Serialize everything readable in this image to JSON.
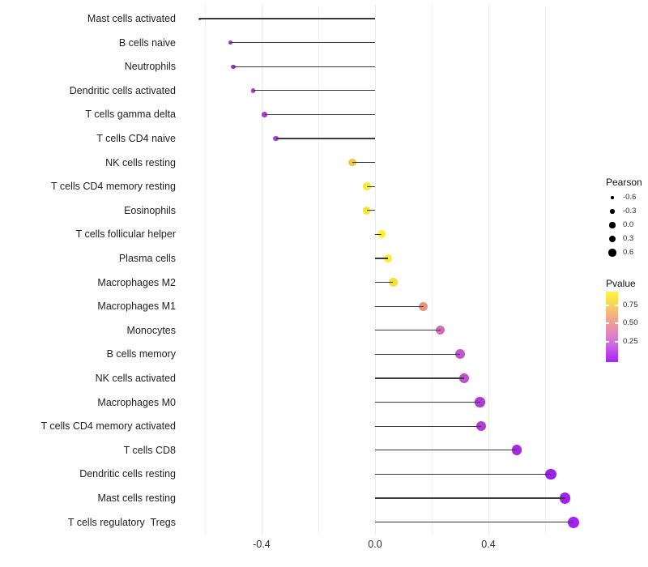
{
  "chart_data": {
    "type": "lollipop",
    "orientation": "horizontal",
    "title": "",
    "xlabel": "",
    "ylabel": "",
    "x_axis": {
      "tick_labels": [
        "-0.4",
        "0.0",
        "0.4"
      ],
      "tick_values": [
        -0.4,
        0.0,
        0.4
      ],
      "minor_gridline_values": [
        -0.6,
        -0.2,
        0.2,
        0.6
      ],
      "range": [
        -0.69,
        0.77
      ],
      "zero_baseline": 0.0
    },
    "rows": [
      {
        "label": "Mast cells activated",
        "pearson": -0.62,
        "dot_color": "#9E2BDA"
      },
      {
        "label": "B cells naive",
        "pearson": -0.51,
        "dot_color": "#A02EDC"
      },
      {
        "label": "Neutrophils",
        "pearson": -0.5,
        "dot_color": "#A02EDC"
      },
      {
        "label": "Dendritic cells activated",
        "pearson": -0.43,
        "dot_color": "#A637D8"
      },
      {
        "label": "T cells gamma delta",
        "pearson": -0.39,
        "dot_color": "#A83AD8"
      },
      {
        "label": "T cells CD4 naive",
        "pearson": -0.35,
        "dot_color": "#AC40D8"
      },
      {
        "label": "NK cells resting",
        "pearson": -0.08,
        "dot_color": "#EFC74E"
      },
      {
        "label": "T cells CD4 memory resting",
        "pearson": -0.028,
        "dot_color": "#F8EC33"
      },
      {
        "label": "Eosinophils",
        "pearson": -0.03,
        "dot_color": "#F6E43A"
      },
      {
        "label": "T cells follicular helper",
        "pearson": 0.023,
        "dot_color": "#FBF32C"
      },
      {
        "label": "Plasma cells",
        "pearson": 0.045,
        "dot_color": "#F9EC31"
      },
      {
        "label": "Macrophages M2",
        "pearson": 0.064,
        "dot_color": "#F6DF3C"
      },
      {
        "label": "Macrophages M1",
        "pearson": 0.17,
        "dot_color": "#E9937F"
      },
      {
        "label": "Monocytes",
        "pearson": 0.23,
        "dot_color": "#D06EB4"
      },
      {
        "label": "B cells memory",
        "pearson": 0.3,
        "dot_color": "#C156C8"
      },
      {
        "label": "NK cells activated",
        "pearson": 0.315,
        "dot_color": "#BE52CA"
      },
      {
        "label": "Macrophages M0",
        "pearson": 0.37,
        "dot_color": "#AE3DD4"
      },
      {
        "label": "T cells CD4 memory activated",
        "pearson": 0.375,
        "dot_color": "#AE3DD4"
      },
      {
        "label": "T cells CD8",
        "pearson": 0.5,
        "dot_color": "#A42BE2"
      },
      {
        "label": "Dendritic cells resting",
        "pearson": 0.62,
        "dot_color": "#9B22EC"
      },
      {
        "label": "Mast cells resting",
        "pearson": 0.67,
        "dot_color": "#A121F0"
      },
      {
        "label": "T cells regulatory  Tregs",
        "pearson": 0.7,
        "dot_color": "#A321F2"
      }
    ],
    "legend_size": {
      "title": "Pearson",
      "items": [
        {
          "label": "-0.6",
          "value": -0.6
        },
        {
          "label": "-0.3",
          "value": -0.3
        },
        {
          "label": "0.0",
          "value": 0.0
        },
        {
          "label": "0.3",
          "value": 0.3
        },
        {
          "label": "0.6",
          "value": 0.6
        }
      ],
      "dot_color": "#000000"
    },
    "legend_color": {
      "title": "Pvalue",
      "tick_labels": [
        "0.75",
        "0.50",
        "0.25"
      ],
      "gradient_top_to_bottom": [
        "#FBF441",
        "#F8DC50",
        "#F3BC78",
        "#ECA096",
        "#E18CB4",
        "#D273D8",
        "#BC4BEC",
        "#A824F5"
      ]
    },
    "layout_hints": {
      "grid": "vertical-only",
      "legend_position": "right",
      "panel_background": "#ffffff"
    }
  },
  "colors": {
    "stem": "#3a3a3a",
    "grid_major": "#e9e9e9",
    "grid_minor": "#f3f3f3",
    "background": "#ffffff"
  }
}
